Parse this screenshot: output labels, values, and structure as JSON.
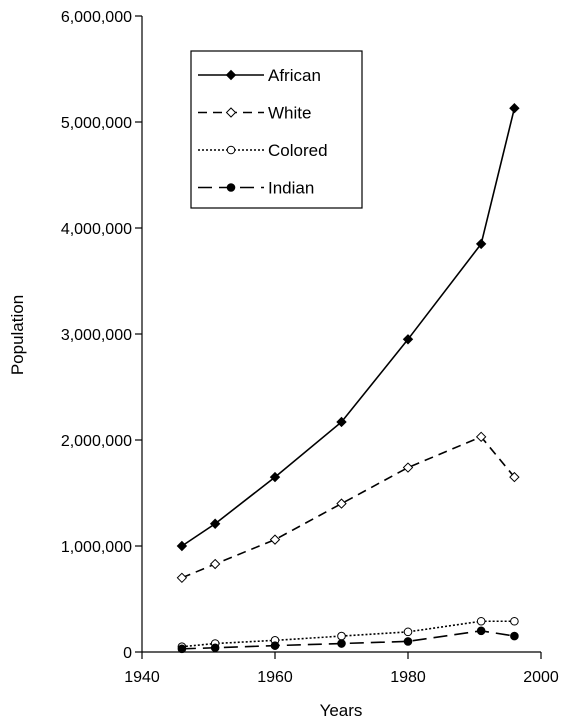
{
  "chart_data": {
    "type": "line",
    "xlabel": "Years",
    "ylabel": "Population",
    "xlim": [
      1940,
      2000
    ],
    "ylim": [
      0,
      6000000
    ],
    "x_ticks": [
      1940,
      1960,
      1980,
      2000
    ],
    "y_ticks": [
      0,
      1000000,
      2000000,
      3000000,
      4000000,
      5000000,
      6000000
    ],
    "x_tick_labels": [
      "1940",
      "1960",
      "1980",
      "2000"
    ],
    "y_tick_labels": [
      "0",
      "1,000,000",
      "2,000,000",
      "3,000,000",
      "4,000,000",
      "5,000,000",
      "6,000,000"
    ],
    "x": [
      1946,
      1951,
      1960,
      1970,
      1980,
      1991,
      1996
    ],
    "grid": false,
    "legend_position": "top-left",
    "series": [
      {
        "name": "African",
        "values": [
          1000000,
          1210000,
          1650000,
          2170000,
          2950000,
          3850000,
          5130000
        ],
        "line": "solid",
        "marker": "filled-diamond"
      },
      {
        "name": "White",
        "values": [
          700000,
          830000,
          1060000,
          1400000,
          1740000,
          2030000,
          1650000
        ],
        "line": "dashed",
        "marker": "open-diamond"
      },
      {
        "name": "Colored",
        "values": [
          50000,
          80000,
          110000,
          150000,
          190000,
          290000,
          290000
        ],
        "line": "dotted",
        "marker": "open-circle"
      },
      {
        "name": "Indian",
        "values": [
          30000,
          40000,
          60000,
          80000,
          100000,
          200000,
          150000
        ],
        "line": "long-dash",
        "marker": "filled-circle"
      }
    ]
  }
}
